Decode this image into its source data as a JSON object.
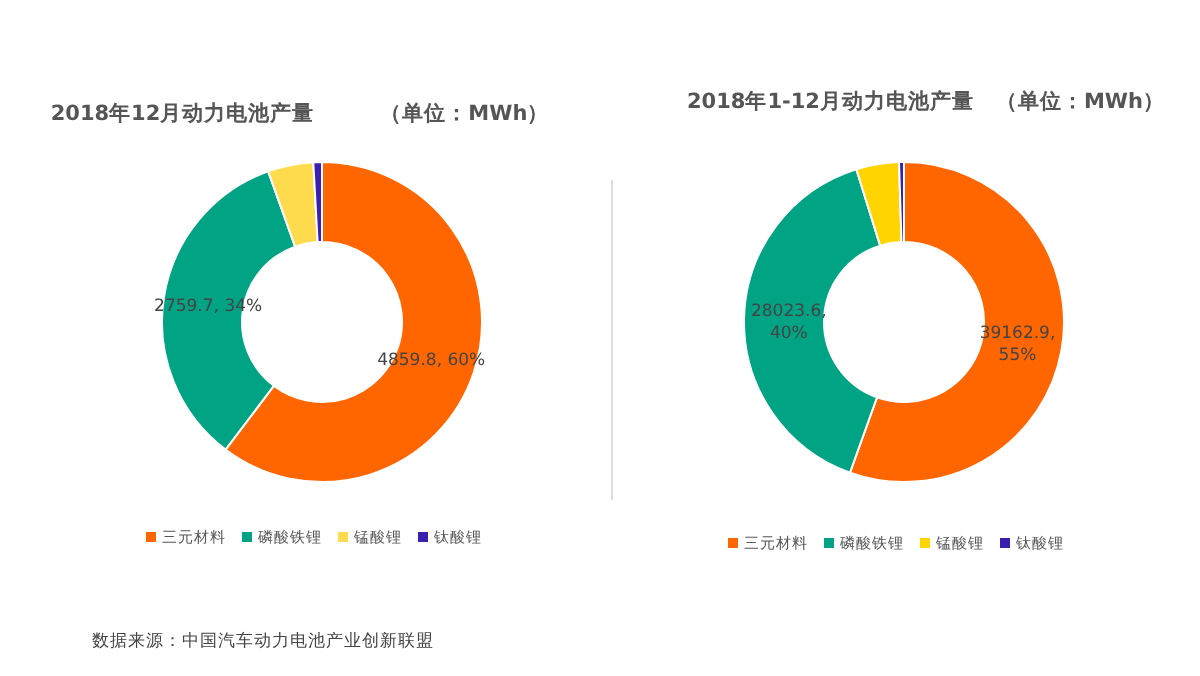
{
  "chart_data": [
    {
      "type": "donut",
      "title": "2018年12月动力电池产量　　　（单位：MWh）",
      "categories": [
        "三元材料",
        "磷酸铁锂",
        "锰酸锂",
        "钛酸锂"
      ],
      "values": [
        4859.8,
        2759.7,
        370,
        70
      ],
      "colors": [
        "#ff6600",
        "#00a383",
        "#ffdb4d",
        "#3a1fb0"
      ],
      "value_labels": [
        "4859.8, 60%",
        "2759.7, 34%",
        null,
        null
      ],
      "legend": "bottom",
      "annotations": [
        "数据来源：中国汽车动力电池产业创新联盟"
      ]
    },
    {
      "type": "donut",
      "title": "2018年1-12月动力电池产量　（单位：MWh）",
      "categories": [
        "三元材料",
        "磷酸铁锂",
        "锰酸锂",
        "钛酸锂"
      ],
      "values": [
        39162.9,
        28023.6,
        3050,
        350
      ],
      "colors": [
        "#ff6600",
        "#00a383",
        "#ffd400",
        "#3a1fb0"
      ],
      "value_labels": [
        "39162.9, 55%",
        "28023.6, 40%",
        null,
        null
      ],
      "legend": "bottom"
    }
  ]
}
